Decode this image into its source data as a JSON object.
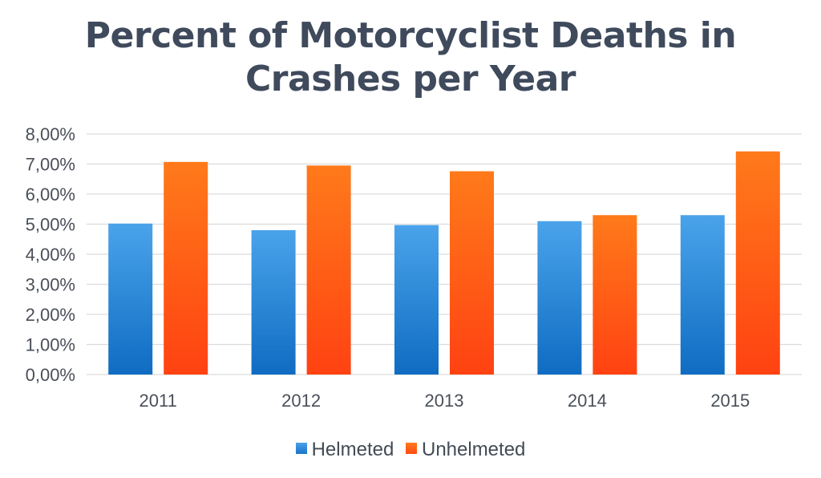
{
  "chart_data": {
    "type": "bar",
    "title_lines": [
      "Percent of Motorcyclist Deaths in",
      "Crashes per Year"
    ],
    "categories": [
      "2011",
      "2012",
      "2013",
      "2014",
      "2015"
    ],
    "series": [
      {
        "name": "Helmeted",
        "values": [
          5.02,
          4.8,
          4.97,
          5.1,
          5.3
        ],
        "color": "#2a86d6"
      },
      {
        "name": "Unhelmeted",
        "values": [
          7.07,
          6.95,
          6.76,
          5.3,
          7.42
        ],
        "color": "#ff5a14"
      }
    ],
    "yticks": [
      "0,00%",
      "1,00%",
      "2,00%",
      "3,00%",
      "4,00%",
      "5,00%",
      "6,00%",
      "7,00%",
      "8,00%"
    ],
    "ylim": [
      0,
      8
    ],
    "grid": true,
    "legend_position": "bottom"
  }
}
